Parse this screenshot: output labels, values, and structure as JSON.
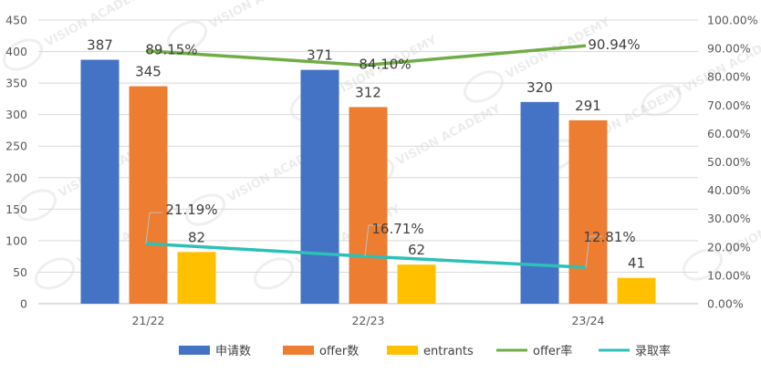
{
  "chart_data": {
    "type": "bar",
    "categories": [
      "21/22",
      "22/23",
      "23/24"
    ],
    "series": [
      {
        "name": "申请数",
        "kind": "bar",
        "axis": "left",
        "color": "#4472C4",
        "values": [
          387,
          371,
          320
        ]
      },
      {
        "name": "offer数",
        "kind": "bar",
        "axis": "left",
        "color": "#ED7D31",
        "values": [
          345,
          312,
          291
        ]
      },
      {
        "name": "entrants",
        "kind": "bar",
        "axis": "left",
        "color": "#FFC000",
        "values": [
          82,
          62,
          41
        ]
      },
      {
        "name": "offer率",
        "kind": "line",
        "axis": "right",
        "color": "#70AD47",
        "values": [
          0.8915,
          0.841,
          0.9094
        ]
      },
      {
        "name": "录取率",
        "kind": "line",
        "axis": "right",
        "color": "#2EC0B8",
        "values": [
          0.2119,
          0.1671,
          0.1281
        ]
      }
    ],
    "bar_labels": [
      [
        "387",
        "371",
        "320"
      ],
      [
        "345",
        "312",
        "291"
      ],
      [
        "82",
        "62",
        "41"
      ]
    ],
    "line_labels": [
      [
        "89.15%",
        "84.10%",
        "90.94%"
      ],
      [
        "21.19%",
        "16.71%",
        "12.81%"
      ]
    ],
    "y_left": {
      "min": 0,
      "max": 450,
      "ticks": [
        "0",
        "50",
        "100",
        "150",
        "200",
        "250",
        "300",
        "350",
        "400",
        "450"
      ]
    },
    "y_right": {
      "min": 0,
      "max": 1,
      "ticks": [
        "0.00%",
        "10.00%",
        "20.00%",
        "30.00%",
        "40.00%",
        "50.00%",
        "60.00%",
        "70.00%",
        "80.00%",
        "90.00%",
        "100.00%"
      ]
    },
    "grid": true,
    "legend": "bottom",
    "watermark": "VISION ACADEMY"
  }
}
